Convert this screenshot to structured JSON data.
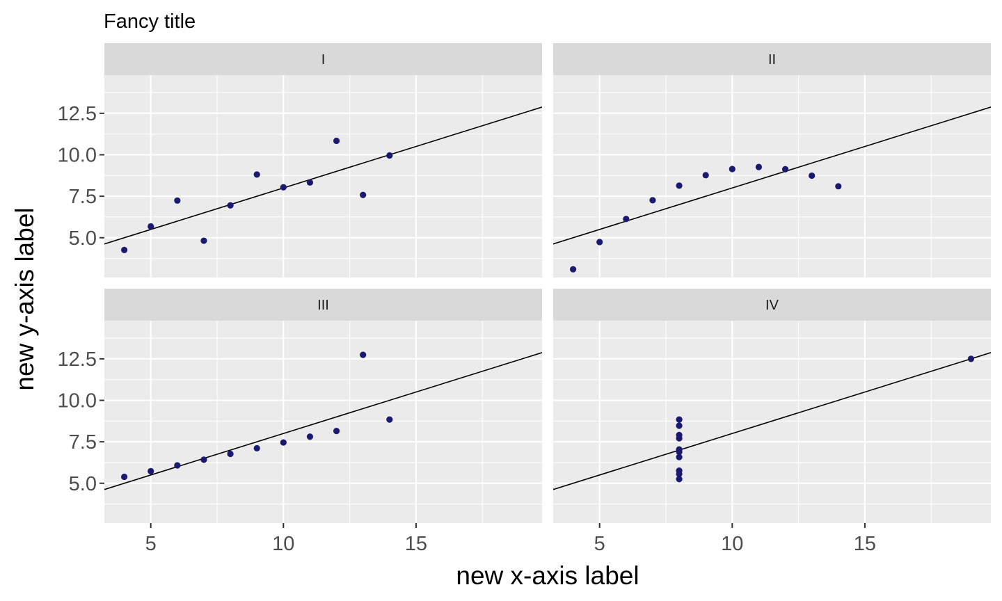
{
  "chart_data": {
    "type": "scatter",
    "title": "Fancy title",
    "xlabel": "new x-axis label",
    "ylabel": "new y-axis label",
    "xlim": [
      3.25,
      19.75
    ],
    "ylim": [
      2.6,
      14.8
    ],
    "x_ticks": [
      "5",
      "10",
      "15"
    ],
    "y_ticks": [
      "5.0",
      "7.5",
      "10.0",
      "12.5"
    ],
    "grid": true,
    "point_color": "#191970",
    "line_color": "#000000",
    "fit_line": {
      "intercept": 3,
      "slope": 0.5
    },
    "panels": [
      {
        "name": "I",
        "x": [
          10,
          8,
          13,
          9,
          11,
          14,
          6,
          4,
          12,
          7,
          5
        ],
        "y": [
          8.04,
          6.95,
          7.58,
          8.81,
          8.33,
          9.96,
          7.24,
          4.26,
          10.84,
          4.82,
          5.68
        ]
      },
      {
        "name": "II",
        "x": [
          10,
          8,
          13,
          9,
          11,
          14,
          6,
          4,
          12,
          7,
          5
        ],
        "y": [
          9.14,
          8.14,
          8.74,
          8.77,
          9.26,
          8.1,
          6.13,
          3.1,
          9.13,
          7.26,
          4.74
        ]
      },
      {
        "name": "III",
        "x": [
          10,
          8,
          13,
          9,
          11,
          14,
          6,
          4,
          12,
          7,
          5
        ],
        "y": [
          7.46,
          6.77,
          12.74,
          7.11,
          7.81,
          8.84,
          6.08,
          5.39,
          8.15,
          6.42,
          5.73
        ]
      },
      {
        "name": "IV",
        "x": [
          8,
          8,
          8,
          8,
          8,
          8,
          8,
          19,
          8,
          8,
          8
        ],
        "y": [
          6.58,
          5.76,
          7.71,
          8.84,
          8.47,
          7.04,
          5.25,
          12.5,
          5.56,
          7.91,
          6.89
        ]
      }
    ]
  }
}
